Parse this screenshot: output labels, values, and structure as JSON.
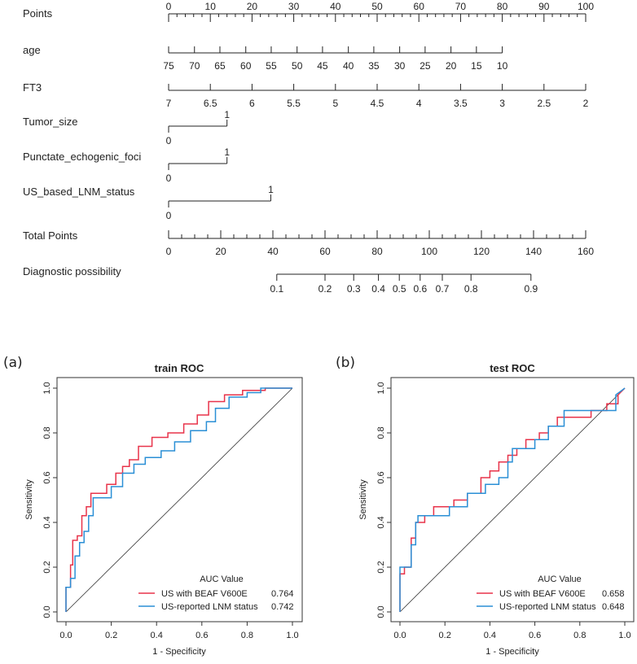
{
  "chart_data": [
    {
      "type": "nomogram",
      "rows": [
        {
          "label": "Points",
          "points_range": [
            0,
            100
          ],
          "ticks": [
            0,
            10,
            20,
            30,
            40,
            50,
            60,
            70,
            80,
            90,
            100
          ],
          "minor_step": 2
        },
        {
          "label": "age",
          "ticks": [
            {
              "value": "75",
              "points": 0
            },
            {
              "value": "70",
              "points": 6.2
            },
            {
              "value": "65",
              "points": 12.3
            },
            {
              "value": "60",
              "points": 18.5
            },
            {
              "value": "55",
              "points": 24.6
            },
            {
              "value": "50",
              "points": 30.8
            },
            {
              "value": "45",
              "points": 36.9
            },
            {
              "value": "40",
              "points": 43.1
            },
            {
              "value": "35",
              "points": 49.2
            },
            {
              "value": "30",
              "points": 55.4
            },
            {
              "value": "25",
              "points": 61.5
            },
            {
              "value": "20",
              "points": 67.7
            },
            {
              "value": "15",
              "points": 73.8
            },
            {
              "value": "10",
              "points": 80
            }
          ]
        },
        {
          "label": "FT3",
          "ticks": [
            {
              "value": "7",
              "points": 0
            },
            {
              "value": "6.5",
              "points": 10
            },
            {
              "value": "6",
              "points": 20
            },
            {
              "value": "5.5",
              "points": 30
            },
            {
              "value": "5",
              "points": 40
            },
            {
              "value": "4.5",
              "points": 50
            },
            {
              "value": "4",
              "points": 60
            },
            {
              "value": "3.5",
              "points": 70
            },
            {
              "value": "3",
              "points": 80
            },
            {
              "value": "2.5",
              "points": 90
            },
            {
              "value": "2",
              "points": 100
            }
          ]
        },
        {
          "label": "Tumor_size",
          "levels": [
            {
              "value": "0",
              "points": 0
            },
            {
              "value": "1",
              "points": 14
            }
          ]
        },
        {
          "label": "Punctate_echogenic_foci",
          "levels": [
            {
              "value": "0",
              "points": 0
            },
            {
              "value": "1",
              "points": 14
            }
          ]
        },
        {
          "label": "US_based_LNM_status",
          "levels": [
            {
              "value": "0",
              "points": 0
            },
            {
              "value": "1",
              "points": 24.5
            }
          ]
        },
        {
          "label": "Total Points",
          "range": [
            0,
            160
          ],
          "ticks": [
            0,
            20,
            40,
            60,
            80,
            100,
            120,
            140,
            160
          ],
          "minor_step": 5
        },
        {
          "label": "Diagnostic possibility",
          "ticks": [
            {
              "value": "0.1",
              "total": 41.5
            },
            {
              "value": "0.2",
              "total": 60
            },
            {
              "value": "0.3",
              "total": 71
            },
            {
              "value": "0.4",
              "total": 80.5
            },
            {
              "value": "0.5",
              "total": 88.5
            },
            {
              "value": "0.6",
              "total": 96.5
            },
            {
              "value": "0.7",
              "total": 105
            },
            {
              "value": "0.8",
              "total": 116
            },
            {
              "value": "0.9",
              "total": 139
            }
          ]
        }
      ]
    },
    {
      "type": "line",
      "panel": "(a)",
      "title": "train ROC",
      "xlabel": "1 - Specificity",
      "ylabel": "Sensitivity",
      "xlim": [
        0,
        1
      ],
      "ylim": [
        0,
        1
      ],
      "ticks": [
        "0.0",
        "0.2",
        "0.4",
        "0.6",
        "0.8",
        "1.0"
      ],
      "legend_title": "AUC Value",
      "legend_position": "bottom-right",
      "series": [
        {
          "name": "US with BEAF V600E",
          "auc": "0.764",
          "color": "#e8334a",
          "x": [
            0,
            0,
            0.02,
            0.02,
            0.03,
            0.03,
            0.05,
            0.05,
            0.07,
            0.07,
            0.09,
            0.09,
            0.11,
            0.11,
            0.13,
            0.13,
            0.18,
            0.18,
            0.22,
            0.22,
            0.25,
            0.25,
            0.28,
            0.28,
            0.32,
            0.32,
            0.38,
            0.38,
            0.45,
            0.45,
            0.52,
            0.52,
            0.58,
            0.58,
            0.63,
            0.63,
            0.7,
            0.7,
            0.78,
            0.78,
            0.88,
            0.88,
            1
          ],
          "y": [
            0,
            0.11,
            0.11,
            0.21,
            0.21,
            0.32,
            0.32,
            0.34,
            0.34,
            0.43,
            0.43,
            0.47,
            0.47,
            0.53,
            0.53,
            0.53,
            0.53,
            0.57,
            0.57,
            0.62,
            0.62,
            0.65,
            0.65,
            0.68,
            0.68,
            0.74,
            0.74,
            0.78,
            0.78,
            0.8,
            0.8,
            0.84,
            0.84,
            0.88,
            0.88,
            0.94,
            0.94,
            0.97,
            0.97,
            0.99,
            0.99,
            1.0,
            1.0
          ]
        },
        {
          "name": "US-reported LNM status",
          "auc": "0.742",
          "color": "#2a8fd6",
          "x": [
            0,
            0,
            0.02,
            0.02,
            0.04,
            0.04,
            0.06,
            0.06,
            0.08,
            0.08,
            0.1,
            0.1,
            0.12,
            0.12,
            0.14,
            0.14,
            0.2,
            0.2,
            0.25,
            0.25,
            0.3,
            0.3,
            0.35,
            0.35,
            0.42,
            0.42,
            0.48,
            0.48,
            0.55,
            0.55,
            0.62,
            0.62,
            0.66,
            0.66,
            0.72,
            0.72,
            0.8,
            0.8,
            0.86,
            0.86,
            1
          ],
          "y": [
            0,
            0.11,
            0.11,
            0.15,
            0.15,
            0.25,
            0.25,
            0.31,
            0.31,
            0.36,
            0.36,
            0.43,
            0.43,
            0.51,
            0.51,
            0.51,
            0.51,
            0.56,
            0.56,
            0.62,
            0.62,
            0.66,
            0.66,
            0.69,
            0.69,
            0.72,
            0.72,
            0.76,
            0.76,
            0.81,
            0.81,
            0.85,
            0.85,
            0.91,
            0.91,
            0.96,
            0.96,
            0.98,
            0.98,
            1.0,
            1.0
          ]
        }
      ]
    },
    {
      "type": "line",
      "panel": "(b)",
      "title": "test ROC",
      "xlabel": "1 - Specificity",
      "ylabel": "Sensitivity",
      "xlim": [
        0,
        1
      ],
      "ylim": [
        0,
        1
      ],
      "ticks": [
        "0.0",
        "0.2",
        "0.4",
        "0.6",
        "0.8",
        "1.0"
      ],
      "legend_title": "AUC Value",
      "legend_position": "bottom-right",
      "series": [
        {
          "name": "US with BEAF V600E",
          "auc": "0.658",
          "color": "#e8334a",
          "x": [
            0,
            0,
            0.02,
            0.02,
            0.05,
            0.05,
            0.07,
            0.07,
            0.11,
            0.11,
            0.15,
            0.15,
            0.24,
            0.24,
            0.3,
            0.3,
            0.36,
            0.36,
            0.4,
            0.4,
            0.44,
            0.44,
            0.48,
            0.48,
            0.52,
            0.52,
            0.56,
            0.56,
            0.62,
            0.62,
            0.66,
            0.66,
            0.7,
            0.7,
            0.75,
            0.75,
            0.85,
            0.85,
            0.92,
            0.92,
            0.97,
            0.97,
            1
          ],
          "y": [
            0,
            0.17,
            0.17,
            0.2,
            0.2,
            0.33,
            0.33,
            0.4,
            0.4,
            0.43,
            0.43,
            0.47,
            0.47,
            0.5,
            0.5,
            0.53,
            0.53,
            0.6,
            0.6,
            0.63,
            0.63,
            0.67,
            0.67,
            0.7,
            0.7,
            0.73,
            0.73,
            0.77,
            0.77,
            0.8,
            0.8,
            0.83,
            0.83,
            0.87,
            0.87,
            0.87,
            0.87,
            0.9,
            0.9,
            0.93,
            0.93,
            0.97,
            1.0
          ]
        },
        {
          "name": "US-reported LNM status",
          "auc": "0.648",
          "color": "#2a8fd6",
          "x": [
            0,
            0,
            0.05,
            0.05,
            0.07,
            0.07,
            0.08,
            0.08,
            0.22,
            0.22,
            0.3,
            0.3,
            0.38,
            0.38,
            0.44,
            0.44,
            0.48,
            0.48,
            0.5,
            0.5,
            0.58,
            0.58,
            0.6,
            0.6,
            0.66,
            0.66,
            0.73,
            0.73,
            0.88,
            0.88,
            0.96,
            0.96,
            1
          ],
          "y": [
            0,
            0.2,
            0.2,
            0.3,
            0.3,
            0.4,
            0.4,
            0.43,
            0.43,
            0.47,
            0.47,
            0.53,
            0.53,
            0.57,
            0.57,
            0.6,
            0.6,
            0.67,
            0.67,
            0.73,
            0.73,
            0.73,
            0.73,
            0.77,
            0.77,
            0.83,
            0.83,
            0.9,
            0.9,
            0.9,
            0.9,
            0.97,
            1.0
          ]
        }
      ]
    }
  ]
}
